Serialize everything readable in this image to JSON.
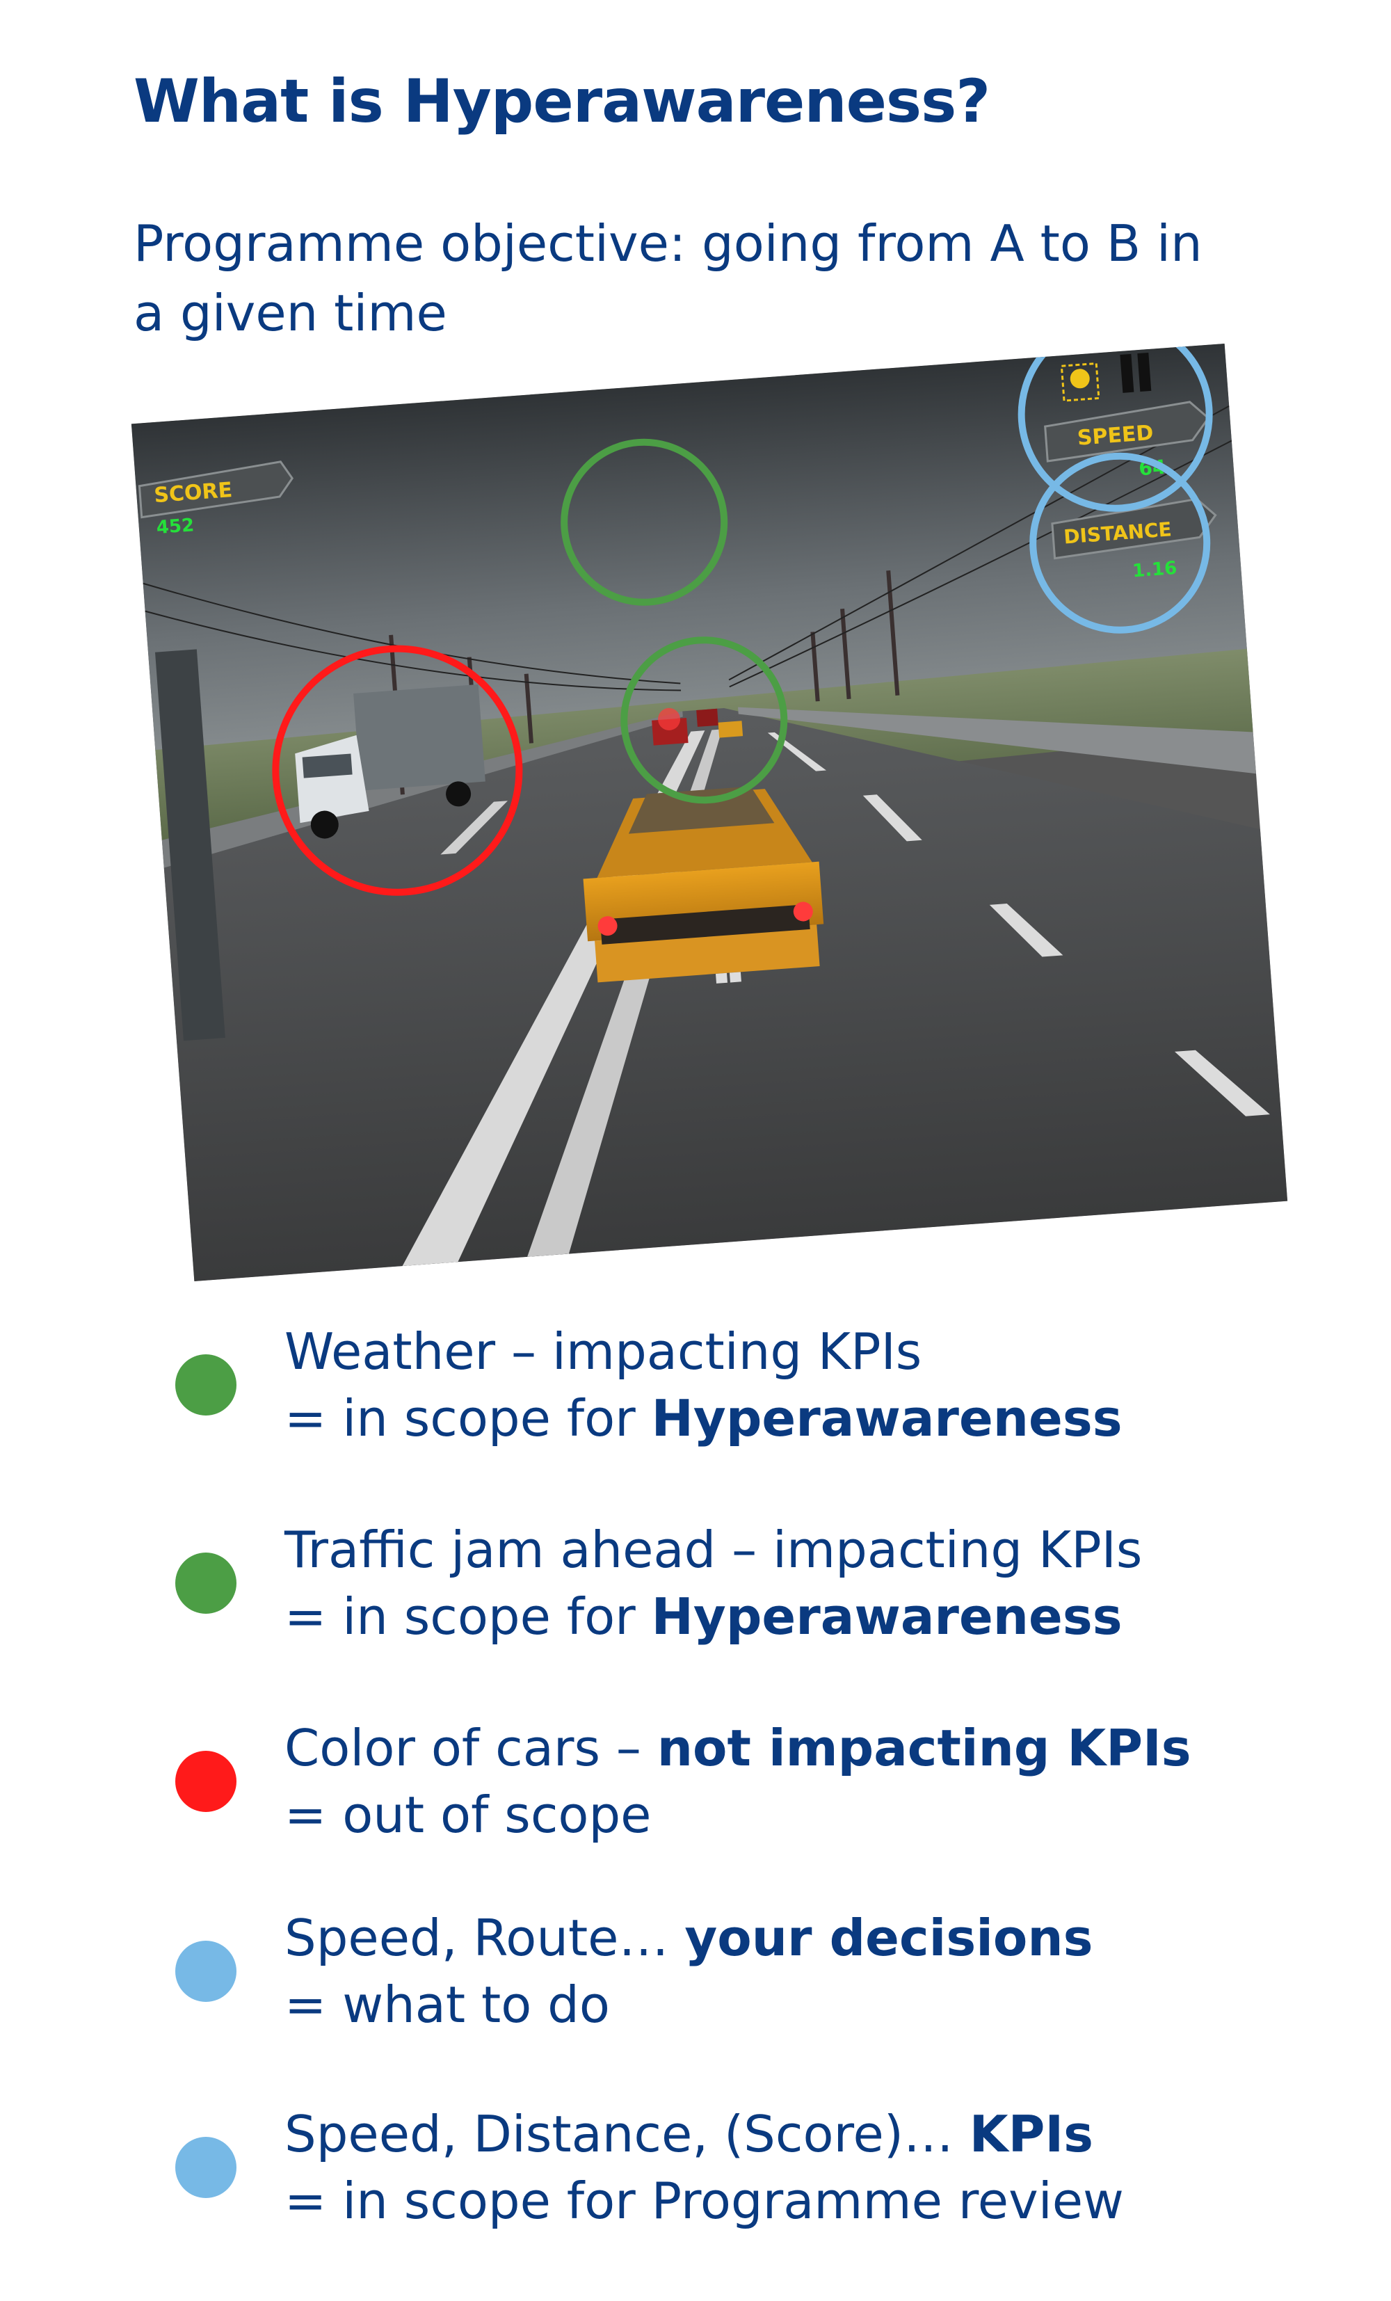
{
  "title": "What is Hyperawareness?",
  "subtitle": "Programme objective: going from A to B in a given time",
  "game_hud": {
    "score_label": "SCORE",
    "score_value": "452",
    "speed_label": "SPEED",
    "speed_value": "64",
    "distance_label": "DISTANCE",
    "distance_value": "1.16"
  },
  "colors": {
    "green": "#4c9e45",
    "red": "#ff1a1a",
    "light_blue": "#77b9e6",
    "navy": "#0a3a80"
  },
  "legend": [
    {
      "color": "#4c9e45",
      "line1": "Weather – impacting KPIs",
      "line2_prefix": "= in scope for ",
      "line2_bold": "Hyperawareness"
    },
    {
      "color": "#4c9e45",
      "line1": "Traffic jam ahead – impacting KPIs",
      "line2_prefix": "= in scope for ",
      "line2_bold": "Hyperawareness"
    },
    {
      "color": "#ff1a1a",
      "line1_prefix": "Color of cars – ",
      "line1_bold": "not impacting KPIs",
      "line2": "= out of scope"
    },
    {
      "color": "#77b9e6",
      "line1_prefix": "Speed, Route… ",
      "line1_bold": "your decisions",
      "line2": "= what to do"
    },
    {
      "color": "#77b9e6",
      "line1_prefix": "Speed, Distance, (Score)… ",
      "line1_bold": "KPIs",
      "line2": "= in scope for Programme review"
    }
  ]
}
